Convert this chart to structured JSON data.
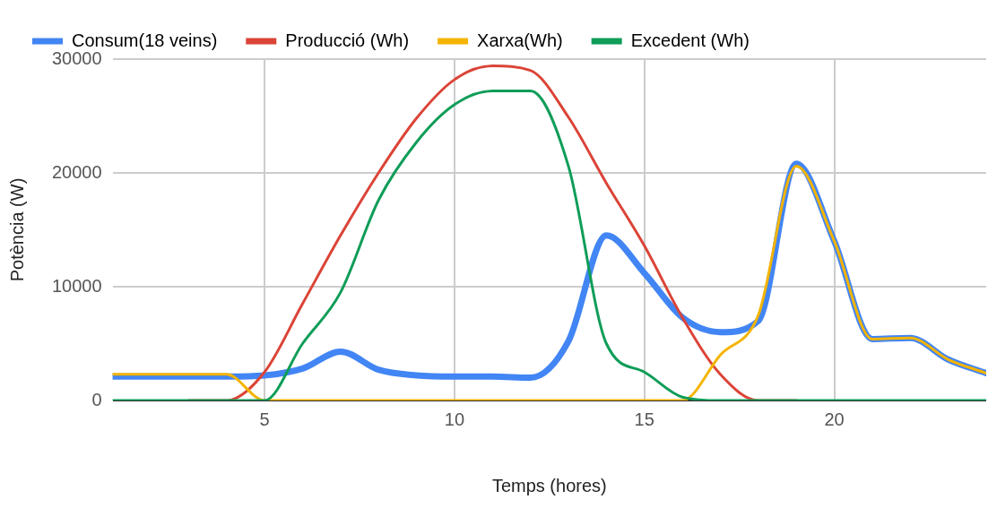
{
  "chart_data": {
    "type": "line",
    "xlabel": "Temps (hores)",
    "ylabel": "Potència (W)",
    "x": [
      1,
      2,
      3,
      4,
      5,
      6,
      7,
      8,
      9,
      10,
      11,
      12,
      13,
      14,
      15,
      16,
      17,
      18,
      19,
      20,
      21,
      22,
      23,
      24
    ],
    "series": [
      {
        "name": "Consum(18 veins)",
        "color": "#4285f4",
        "values": [
          2100,
          2100,
          2100,
          2100,
          2200,
          2800,
          4300,
          2700,
          2200,
          2100,
          2100,
          2000,
          5200,
          14500,
          11200,
          7300,
          6000,
          7000,
          20800,
          14000,
          5400,
          5500,
          3600,
          2400
        ]
      },
      {
        "name": "Producció (Wh)",
        "color": "#db4437",
        "values": [
          null,
          null,
          0,
          0,
          2500,
          8500,
          14500,
          20000,
          24800,
          28200,
          29400,
          29000,
          24900,
          19100,
          13600,
          7300,
          2300,
          0,
          0,
          null,
          null,
          null,
          null,
          null
        ]
      },
      {
        "name": "Xarxa(Wh)",
        "color": "#f4b400",
        "values": [
          2300,
          2300,
          2300,
          2300,
          0,
          0,
          0,
          0,
          0,
          0,
          0,
          0,
          0,
          0,
          0,
          0,
          4000,
          7500,
          20600,
          14000,
          5400,
          5500,
          3600,
          2400
        ]
      },
      {
        "name": "Excedent (Wh)",
        "color": "#0f9d58",
        "values": [
          0,
          0,
          0,
          0,
          0,
          5000,
          9500,
          17600,
          22700,
          26000,
          27200,
          27200,
          20600,
          5000,
          2500,
          300,
          0,
          0,
          0,
          0,
          0,
          0,
          0,
          0
        ]
      }
    ],
    "xlim": [
      1,
      24
    ],
    "ylim": [
      0,
      30000
    ],
    "xticks": [
      5,
      10,
      15,
      20
    ],
    "yticks": [
      0,
      10000,
      20000,
      30000
    ],
    "grid": true,
    "legend": "top",
    "marker": "none",
    "line_style": "solid"
  }
}
